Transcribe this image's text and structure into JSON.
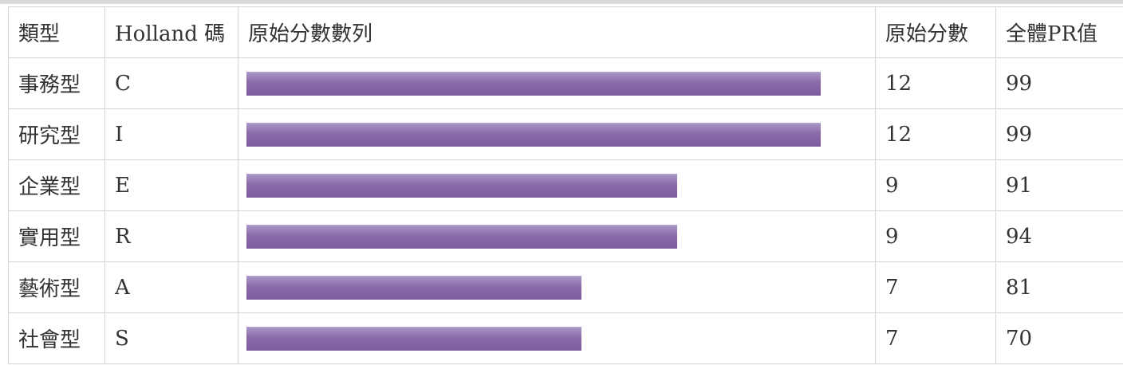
{
  "table": {
    "headers": [
      "類型",
      "Holland 碼",
      "原始分數數列",
      "原始分數",
      "全體PR值"
    ]
  },
  "chart_data": {
    "type": "bar",
    "orientation": "horizontal",
    "max_scale": 12,
    "categories": [
      "事務型",
      "研究型",
      "企業型",
      "實用型",
      "藝術型",
      "社會型"
    ],
    "codes": [
      "C",
      "I",
      "E",
      "R",
      "A",
      "S"
    ],
    "values": [
      12,
      12,
      9,
      9,
      7,
      7
    ],
    "pr_values": [
      99,
      99,
      91,
      94,
      81,
      70
    ],
    "bar_color": "#8468a8"
  },
  "rows": [
    {
      "type": "事務型",
      "code": "C",
      "raw": "12",
      "pr": "99"
    },
    {
      "type": "研究型",
      "code": "I",
      "raw": "12",
      "pr": "99"
    },
    {
      "type": "企業型",
      "code": "E",
      "raw": "9",
      "pr": "91"
    },
    {
      "type": "實用型",
      "code": "R",
      "raw": "9",
      "pr": "94"
    },
    {
      "type": "藝術型",
      "code": "A",
      "raw": "7",
      "pr": "81"
    },
    {
      "type": "社會型",
      "code": "S",
      "raw": "7",
      "pr": "70"
    }
  ]
}
